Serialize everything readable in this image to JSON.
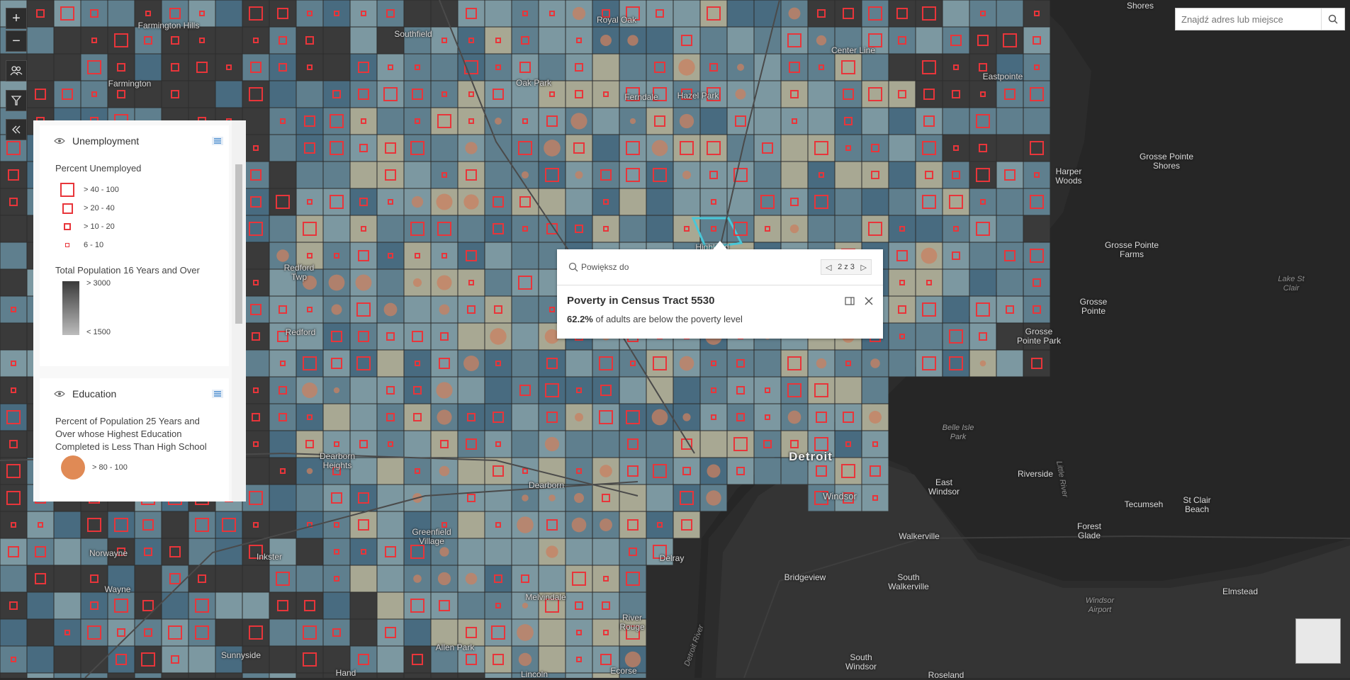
{
  "search": {
    "placeholder": "Znajdź adres lub miejsce"
  },
  "toolbar": {
    "zoom_in": "+",
    "zoom_out": "−"
  },
  "legend": {
    "unemployment": {
      "layer_name": "Unemployment",
      "title": "Percent Unemployed",
      "classes": [
        "> 40 - 100",
        "> 20 - 40",
        "> 10 - 20",
        "6 - 10"
      ],
      "size_title": "Total Population 16 Years and Over",
      "size_max": "> 3000",
      "size_min": "< 1500"
    },
    "education": {
      "layer_name": "Education",
      "title": "Percent of Population 25 Years and Over whose Highest Education Completed is Less Than High School",
      "classes": [
        "> 80 - 100"
      ]
    }
  },
  "popup": {
    "zoom_label": "Powiększ do",
    "pager": "2 z 3",
    "title": "Poverty in Census Tract 5530",
    "value": "62.2%",
    "text": " of adults are below the poverty level"
  },
  "places": {
    "farmington_hills": "Farmington Hills",
    "southfield": "Southfield",
    "royal_oak": "Royal Oak",
    "shores": "Shores",
    "farmington": "Farmington",
    "oak_park": "Oak Park",
    "ferndale": "Ferndale",
    "hazel_park": "Hazel Park",
    "center_line": "Center Line",
    "eastpointe": "Eastpointe",
    "grosse_pointe_shores": "Grosse Pointe Shores",
    "harper_woods": "Harper Woods",
    "grosse_pointe_farms": "Grosse Pointe Farms",
    "lake_st_clair": "Lake St Clair",
    "grosse_pointe": "Grosse Pointe",
    "grosse_pointe_park": "Grosse Pointe Park",
    "redford_twp": "Redford Twp",
    "redford": "Redford",
    "highland": "Highland",
    "belle_isle": "Belle Isle Park",
    "detroit": "Detroit",
    "dearborn_heights": "Dearborn Heights",
    "dearborn": "Dearborn",
    "windsor": "Windsor",
    "east_windsor": "East Windsor",
    "riverside": "Riverside",
    "tecumseh": "Tecumseh",
    "st_clair_beach": "St Clair Beach",
    "forest_glade": "Forest Glade",
    "greenfield_village": "Greenfield Village",
    "norwayne": "Norwayne",
    "inkster": "Inkster",
    "walkerville": "Walkerville",
    "wayne": "Wayne",
    "delray": "Delray",
    "bridgeview": "Bridgeview",
    "south_walkerville": "South Walkerville",
    "windsor_airport": "Windsor Airport",
    "elmstead": "Elmstead",
    "melvindale": "Melvindale",
    "river_rouge": "River Rouge",
    "allen_park": "Allen Park",
    "sunnyside": "Sunnyside",
    "ecorse": "Ecorse",
    "south_windsor": "South Windsor",
    "detroit_river": "Detroit River",
    "little_river": "Little River",
    "lincoln": "Lincoln",
    "hand": "Hand",
    "roseland": "Roseland"
  }
}
